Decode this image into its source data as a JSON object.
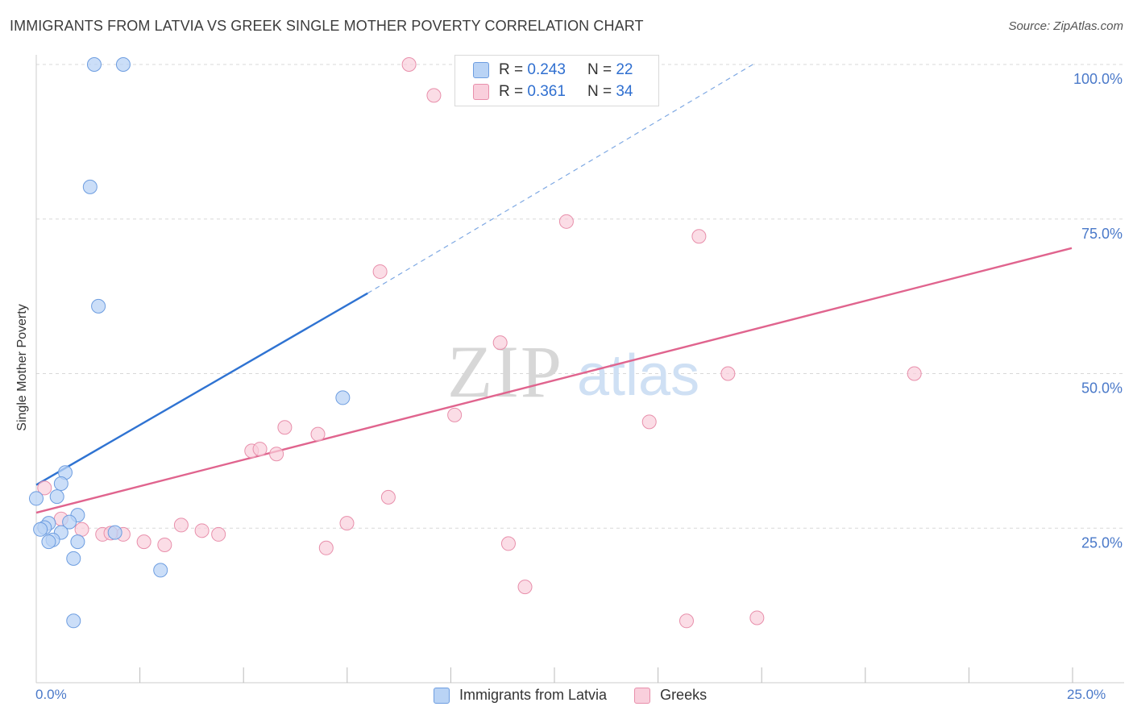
{
  "header": {
    "title": "IMMIGRANTS FROM LATVIA VS GREEK SINGLE MOTHER POVERTY CORRELATION CHART",
    "source": "Source: ZipAtlas.com"
  },
  "colors": {
    "blue_fill": "#b9d3f5",
    "blue_stroke": "#6d9de0",
    "blue_line": "#2f73d2",
    "pink_fill": "#f9cfdc",
    "pink_stroke": "#e88fab",
    "pink_line": "#e0648e",
    "axis_text": "#4a79c9",
    "grid": "#d8d8d8"
  },
  "legend": {
    "r_label": "R =",
    "n_label": "N =",
    "series": [
      {
        "r": "0.243",
        "n": "22"
      },
      {
        "r": "0.361",
        "n": "34"
      }
    ]
  },
  "bottom_legend": [
    "Immigrants from Latvia",
    "Greeks"
  ],
  "watermark": {
    "zip": "ZIP",
    "atlas": "atlas"
  },
  "chart_data": {
    "type": "scatter",
    "xlabel": "",
    "ylabel": "Single Mother Poverty",
    "xlim": [
      0,
      25
    ],
    "ylim": [
      0,
      100
    ],
    "x_tick_labels": [
      "0.0%",
      "25.0%"
    ],
    "y_tick_labels": [
      "25.0%",
      "50.0%",
      "75.0%",
      "100.0%"
    ],
    "y_ticks": [
      25,
      50,
      75,
      100
    ],
    "grid": true,
    "series": [
      {
        "name": "Immigrants from Latvia",
        "points": [
          [
            1.4,
            100.0
          ],
          [
            2.1,
            100.0
          ],
          [
            1.3,
            80.2
          ],
          [
            1.5,
            60.9
          ],
          [
            7.4,
            46.1
          ],
          [
            0.7,
            34.0
          ],
          [
            0.6,
            32.2
          ],
          [
            0.5,
            30.1
          ],
          [
            0.0,
            29.8
          ],
          [
            1.0,
            27.1
          ],
          [
            0.8,
            26.0
          ],
          [
            0.3,
            25.8
          ],
          [
            0.2,
            25.1
          ],
          [
            0.1,
            24.8
          ],
          [
            0.6,
            24.3
          ],
          [
            1.9,
            24.3
          ],
          [
            0.4,
            23.1
          ],
          [
            1.0,
            22.8
          ],
          [
            0.3,
            22.8
          ],
          [
            0.9,
            20.1
          ],
          [
            3.0,
            18.2
          ],
          [
            0.9,
            10.0
          ]
        ],
        "trend": {
          "x0": 0.0,
          "y0": 32.0,
          "x1": 8.0,
          "y1": 63.0,
          "dash_to_x": 17.3,
          "dash_to_y": 100.0
        }
      },
      {
        "name": "Greeks",
        "points": [
          [
            9.0,
            100.0
          ],
          [
            13.6,
            100.0
          ],
          [
            9.6,
            95.0
          ],
          [
            12.8,
            74.6
          ],
          [
            16.0,
            72.2
          ],
          [
            8.3,
            66.5
          ],
          [
            11.2,
            55.0
          ],
          [
            16.7,
            50.0
          ],
          [
            21.2,
            50.0
          ],
          [
            10.1,
            43.3
          ],
          [
            14.8,
            42.2
          ],
          [
            6.0,
            41.3
          ],
          [
            6.8,
            40.2
          ],
          [
            5.2,
            37.5
          ],
          [
            5.4,
            37.8
          ],
          [
            5.8,
            37.0
          ],
          [
            0.2,
            31.5
          ],
          [
            8.5,
            30.0
          ],
          [
            0.6,
            26.5
          ],
          [
            7.5,
            25.8
          ],
          [
            3.5,
            25.5
          ],
          [
            4.0,
            24.6
          ],
          [
            1.1,
            24.8
          ],
          [
            1.6,
            24.0
          ],
          [
            2.1,
            24.0
          ],
          [
            4.4,
            24.0
          ],
          [
            2.6,
            22.8
          ],
          [
            3.1,
            22.3
          ],
          [
            7.0,
            21.8
          ],
          [
            11.4,
            22.5
          ],
          [
            11.8,
            15.5
          ],
          [
            15.7,
            10.0
          ],
          [
            17.4,
            10.5
          ],
          [
            1.8,
            24.2
          ]
        ],
        "trend": {
          "x0": 0.0,
          "y0": 27.5,
          "x1": 25.0,
          "y1": 70.3
        }
      }
    ]
  }
}
